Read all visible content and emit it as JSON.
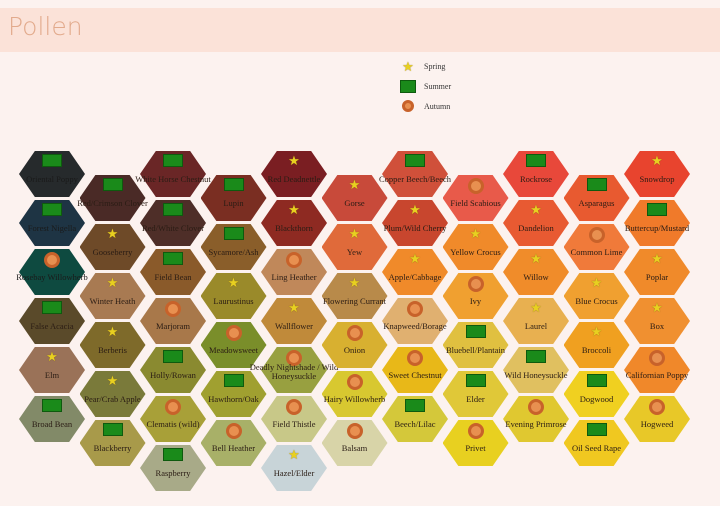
{
  "header": {
    "title": "Pollen"
  },
  "legend": [
    {
      "season": "spring",
      "label": "Spring",
      "icon": "star-icon"
    },
    {
      "season": "summer",
      "label": "Summer",
      "icon": "green-rectangle-icon"
    },
    {
      "season": "autumn",
      "label": "Autumn",
      "icon": "orange-ring-icon"
    }
  ],
  "chart_data": {
    "type": "table",
    "season_colors": {
      "spring": "#e8d020",
      "summer": "#1a8a1a",
      "autumn": "#c8622a"
    },
    "columns": [
      [
        {
          "name": "Oriental Poppy",
          "color": "#262a2c",
          "season": "summer"
        },
        {
          "name": "Forest Nigella",
          "color": "#1e3444",
          "season": "summer"
        },
        {
          "name": "Rosebay Willowherb",
          "color": "#0e4a40",
          "season": "autumn"
        },
        {
          "name": "False Acacia",
          "color": "#5a4a2a",
          "season": "summer"
        },
        {
          "name": "Elm",
          "color": "#9a7258",
          "season": "spring"
        },
        {
          "name": "Broad Bean",
          "color": "#828a68",
          "season": "summer"
        }
      ],
      [
        {
          "name": "Red/Crimson Clover",
          "color": "#4a2a26",
          "season": "summer"
        },
        {
          "name": "Gooseberry",
          "color": "#6e4a28",
          "season": "spring"
        },
        {
          "name": "Winter Heath",
          "color": "#a87a52",
          "season": "spring"
        },
        {
          "name": "Berberis",
          "color": "#7e6a2a",
          "season": "spring"
        },
        {
          "name": "Pear/Crab Apple",
          "color": "#7a7a3a",
          "season": "spring"
        },
        {
          "name": "Blackberry",
          "color": "#a89a4a",
          "season": "summer"
        }
      ],
      [
        {
          "name": "White Horse Chestnut",
          "color": "#6a2626",
          "season": "summer"
        },
        {
          "name": "Red/White Clover",
          "color": "#4e2e28",
          "season": "summer"
        },
        {
          "name": "Field Bean",
          "color": "#8a5a2a",
          "season": "summer"
        },
        {
          "name": "Marjoram",
          "color": "#a8784a",
          "season": "autumn"
        },
        {
          "name": "Holly/Rowan",
          "color": "#8a8a30",
          "season": "summer"
        },
        {
          "name": "Clematis (wild)",
          "color": "#a8a038",
          "season": "autumn"
        },
        {
          "name": "Raspberry",
          "color": "#a8aa88",
          "season": "summer"
        }
      ],
      [
        {
          "name": "Lupin",
          "color": "#7a2e22",
          "season": "summer"
        },
        {
          "name": "Sycamore/Ash",
          "color": "#8a5e2a",
          "season": "summer"
        },
        {
          "name": "Laurustinus",
          "color": "#9a8a2a",
          "season": "spring"
        },
        {
          "name": "Meadowsweet",
          "color": "#7a8e2a",
          "season": "autumn"
        },
        {
          "name": "Hawthorn/Oak",
          "color": "#a0a030",
          "season": "summer"
        },
        {
          "name": "Bell Heather",
          "color": "#a8b068",
          "season": "autumn"
        }
      ],
      [
        {
          "name": "Red Deadnettle",
          "color": "#7a1e22",
          "season": "spring"
        },
        {
          "name": "Blackthorn",
          "color": "#8e2a22",
          "season": "spring"
        },
        {
          "name": "Ling Heather",
          "color": "#c0885a",
          "season": "autumn"
        },
        {
          "name": "Wallflower",
          "color": "#c08a3a",
          "season": "spring"
        },
        {
          "name": "Deadly Nightshade / Wild Honeysuckle",
          "color": "#98a040",
          "season": "autumn"
        },
        {
          "name": "Field Thistle",
          "color": "#c8c888",
          "season": "autumn"
        },
        {
          "name": "Hazel/Elder",
          "color": "#c8d4d8",
          "season": "spring"
        }
      ],
      [
        {
          "name": "Gorse",
          "color": "#c84a3a",
          "season": "spring"
        },
        {
          "name": "Yew",
          "color": "#e06a3a",
          "season": "spring"
        },
        {
          "name": "Flowering Currant",
          "color": "#b88a4a",
          "season": "spring"
        },
        {
          "name": "Onion",
          "color": "#d8b030",
          "season": "autumn"
        },
        {
          "name": "Hairy Willowherb",
          "color": "#d8c830",
          "season": "autumn"
        },
        {
          "name": "Balsam",
          "color": "#d8d4a8",
          "season": "autumn"
        }
      ],
      [
        {
          "name": "Copper Beech/Beech",
          "color": "#d0503a",
          "season": "summer"
        },
        {
          "name": "Plum/Wild Cherry",
          "color": "#c8462e",
          "season": "spring"
        },
        {
          "name": "Apple/Cabbage",
          "color": "#f08a2a",
          "season": "spring"
        },
        {
          "name": "Knapweed/Borage",
          "color": "#e0b070",
          "season": "autumn"
        },
        {
          "name": "Sweet Chestnut",
          "color": "#e8b818",
          "season": "autumn"
        },
        {
          "name": "Beech/Lilac",
          "color": "#d4c83a",
          "season": "summer"
        }
      ],
      [
        {
          "name": "Field Scabious",
          "color": "#e85a4a",
          "season": "autumn"
        },
        {
          "name": "Yellow Crocus",
          "color": "#f08a2a",
          "season": "spring"
        },
        {
          "name": "Ivy",
          "color": "#f0a030",
          "season": "autumn"
        },
        {
          "name": "Bluebell/Plantain",
          "color": "#e0c040",
          "season": "summer"
        },
        {
          "name": "Elder",
          "color": "#e0c838",
          "season": "summer"
        },
        {
          "name": "Privet",
          "color": "#e8d020",
          "season": "autumn"
        }
      ],
      [
        {
          "name": "Rockrose",
          "color": "#e8483a",
          "season": "summer"
        },
        {
          "name": "Dandelion",
          "color": "#e85a32",
          "season": "spring"
        },
        {
          "name": "Willow",
          "color": "#f08c2a",
          "season": "spring"
        },
        {
          "name": "Laurel",
          "color": "#e8b050",
          "season": "spring"
        },
        {
          "name": "Wild Honeysuckle",
          "color": "#e0c060",
          "season": "summer"
        },
        {
          "name": "Evening Primrose",
          "color": "#e0c830",
          "season": "autumn"
        }
      ],
      [
        {
          "name": "Asparagus",
          "color": "#e85a30",
          "season": "summer"
        },
        {
          "name": "Common Lime",
          "color": "#f07a3a",
          "season": "autumn"
        },
        {
          "name": "Blue Crocus",
          "color": "#f0a030",
          "season": "spring"
        },
        {
          "name": "Broccoli",
          "color": "#f0a020",
          "season": "spring"
        },
        {
          "name": "Dogwood",
          "color": "#f0d020",
          "season": "summer"
        },
        {
          "name": "Oil Seed Rape",
          "color": "#f0c820",
          "season": "summer"
        }
      ],
      [
        {
          "name": "Snowdrop",
          "color": "#e8442e",
          "season": "spring"
        },
        {
          "name": "Buttercup/Mustard",
          "color": "#f07a2a",
          "season": "summer"
        },
        {
          "name": "Poplar",
          "color": "#f08a2a",
          "season": "spring"
        },
        {
          "name": "Box",
          "color": "#f09030",
          "season": "spring"
        },
        {
          "name": "Californian Poppy",
          "color": "#f0882a",
          "season": "autumn"
        },
        {
          "name": "Hogweed",
          "color": "#e8c828",
          "season": "autumn"
        }
      ]
    ]
  }
}
